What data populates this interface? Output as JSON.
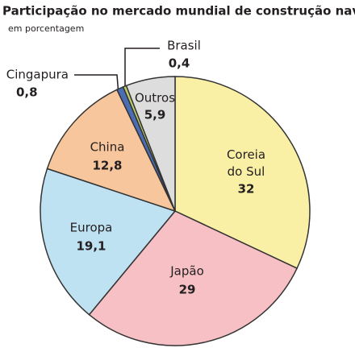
{
  "chart_data": {
    "type": "pie",
    "title": "Participação no mercado mundial de construção naval",
    "subtitle": "em porcentagem",
    "categories": [
      "Coreia do Sul",
      "Japão",
      "Europa",
      "China",
      "Cingapura",
      "Brasil",
      "Outros"
    ],
    "values": [
      32,
      29,
      19.1,
      12.8,
      0.8,
      0.4,
      5.9
    ],
    "value_labels": [
      "32",
      "29",
      "19,1",
      "12,8",
      "0,8",
      "0,4",
      "5,9"
    ],
    "colors": [
      "#f9f0a6",
      "#f6c0c4",
      "#bfe2f3",
      "#f8c69c",
      "#4a6db3",
      "#bccf6c",
      "#dddddd"
    ]
  }
}
